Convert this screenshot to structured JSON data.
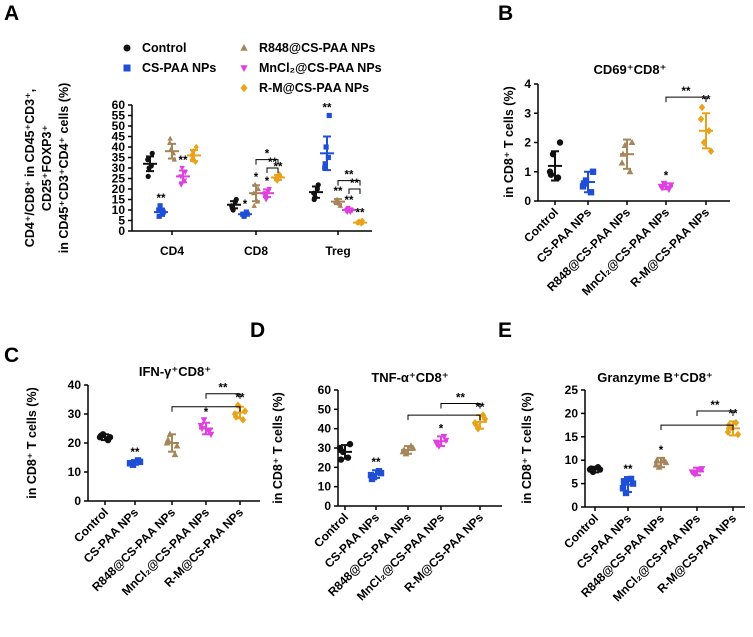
{
  "colors": {
    "Control": "#111111",
    "CS-PAA NPs": "#1f4fd6",
    "R848@CS-PAA NPs": "#a5855a",
    "MnCl2@CS-PAA NPs": "#e040e0",
    "R-M@CS-PAA NPs": "#e9a21c"
  },
  "chart_data": [
    {
      "panel": "A",
      "type": "scatter",
      "title": "",
      "ylabel_lines": [
        "CD4⁺/CD8⁺ in CD45⁺CD3⁺,",
        "CD25⁺FOXP3⁺",
        "in CD45⁺CD3⁺CD4⁺ cells (%)"
      ],
      "categories": [
        "CD4",
        "CD8",
        "Treg"
      ],
      "ylim": [
        0,
        60
      ],
      "yticks": [
        0,
        5,
        10,
        15,
        20,
        25,
        30,
        35,
        40,
        45,
        50,
        55,
        60
      ],
      "legend": [
        {
          "label": "Control",
          "symbol": "circle"
        },
        {
          "label": "CS-PAA NPs",
          "symbol": "square"
        },
        {
          "label": "R848@CS-PAA NPs",
          "symbol": "triangle"
        },
        {
          "label": "MnCl₂@CS-PAA NPs",
          "symbol": "triangle-down"
        },
        {
          "label": "R-M@CS-PAA NPs",
          "symbol": "diamond"
        }
      ],
      "series": [
        {
          "name": "Control",
          "symbol": "circle",
          "points": [
            [
              34,
              31,
              30,
              37,
              26
            ],
            [
              12,
              14,
              10,
              15,
              11
            ],
            [
              18,
              20,
              16,
              22,
              15
            ]
          ],
          "mean": [
            32,
            12.5,
            18.5
          ],
          "sd": [
            3.5,
            1.7,
            2.7
          ]
        },
        {
          "name": "CS-PAA NPs",
          "symbol": "square",
          "points": [
            [
              10,
              8,
              12,
              9,
              7
            ],
            [
              8,
              9,
              7,
              8,
              8
            ],
            [
              30,
              35,
              40,
              55,
              32
            ]
          ],
          "mean": [
            9,
            8,
            37
          ],
          "sd": [
            1.7,
            0.6,
            8
          ]
        },
        {
          "name": "R848@CS-PAA NPs",
          "symbol": "triangle",
          "points": [
            [
              42,
              37,
              39,
              34,
              44
            ],
            [
              18,
              14,
              22,
              20,
              12
            ],
            [
              14,
              13,
              15,
              12,
              14
            ]
          ],
          "mean": [
            38,
            18,
            14
          ],
          "sd": [
            3.5,
            3.8,
            1.2
          ]
        },
        {
          "name": "MnCl2@CS-PAA NPs",
          "symbol": "triangle-down",
          "points": [
            [
              26,
              24,
              30,
              28,
              22
            ],
            [
              17,
              19,
              15,
              20,
              18
            ],
            [
              10,
              9,
              11,
              10,
              9
            ]
          ],
          "mean": [
            26,
            18,
            10
          ],
          "sd": [
            2.8,
            1.8,
            0.8
          ]
        },
        {
          "name": "R-M@CS-PAA NPs",
          "symbol": "diamond",
          "points": [
            [
              36,
              33,
              38,
              40,
              34
            ],
            [
              25,
              27,
              24,
              26,
              25
            ],
            [
              4,
              3.5,
              4.5,
              5,
              4
            ]
          ],
          "mean": [
            36,
            25.5,
            4
          ],
          "sd": [
            2.6,
            1.2,
            0.5
          ]
        }
      ],
      "significance": [
        {
          "series": 1,
          "cat": 0,
          "label": "**"
        },
        {
          "series": 3,
          "cat": 0,
          "label": "**"
        },
        {
          "series": 1,
          "cat": 1,
          "label": "*"
        },
        {
          "series": 2,
          "cat": 1,
          "label": "*"
        },
        {
          "series": 3,
          "cat": 1,
          "label": "*"
        },
        {
          "series": 4,
          "cat": 1,
          "label": "**"
        },
        {
          "series": 1,
          "cat": 2,
          "label": "**"
        },
        {
          "series": 2,
          "cat": 2,
          "label": "**"
        },
        {
          "series": 3,
          "cat": 2,
          "label": "**"
        },
        {
          "series": 4,
          "cat": 2,
          "label": "**"
        }
      ],
      "brackets": [
        {
          "cat": 1,
          "from": 2,
          "to": 4,
          "y": 34,
          "label": "*"
        },
        {
          "cat": 1,
          "from": 3,
          "to": 4,
          "y": 30,
          "label": "**"
        },
        {
          "cat": 2,
          "from": 2,
          "to": 4,
          "y": 24,
          "label": "**"
        },
        {
          "cat": 2,
          "from": 3,
          "to": 4,
          "y": 20,
          "label": "**"
        }
      ]
    },
    {
      "panel": "B",
      "type": "scatter",
      "title": "CD69⁺CD8⁺",
      "ylabel": "in CD8⁺ T cells (%)",
      "ylim": [
        0,
        4
      ],
      "yticks": [
        0,
        1,
        2,
        3,
        4
      ],
      "categories": [
        "Control",
        "CS-PAA NPs",
        "R848@CS-PAA NPs",
        "MnCl₂@CS-PAA NPs",
        "R-M@CS-PAA NPs"
      ],
      "groups": [
        {
          "points": [
            1.0,
            0.8,
            1.6,
            2.0,
            0.9
          ],
          "mean": 1.2,
          "sd": 0.5
        },
        {
          "points": [
            0.5,
            0.3,
            0.7,
            1.0,
            0.6
          ],
          "mean": 0.65,
          "sd": 0.35
        },
        {
          "points": [
            1.3,
            1.0,
            1.9,
            2.0,
            1.6
          ],
          "mean": 1.6,
          "sd": 0.5
        },
        {
          "points": [
            0.5,
            0.4,
            0.6,
            0.55,
            0.45
          ],
          "mean": 0.5,
          "sd": 0.1
        },
        {
          "points": [
            2.8,
            2.4,
            2.0,
            1.7,
            3.2
          ],
          "mean": 2.4,
          "sd": 0.6
        }
      ],
      "significance": [
        {
          "group": 3,
          "label": "*"
        },
        {
          "group": 4,
          "label": "**"
        }
      ],
      "brackets": [
        {
          "from": 3,
          "to": 4,
          "y": 3.55,
          "label": "**"
        }
      ]
    },
    {
      "panel": "C",
      "type": "scatter",
      "title": "IFN-γ⁺CD8⁺",
      "ylabel": "in CD8⁺ T cells (%)",
      "ylim": [
        0,
        40
      ],
      "yticks": [
        0,
        10,
        20,
        30,
        40
      ],
      "categories": [
        "Control",
        "CS-PAA NPs",
        "R848@CS-PAA NPs",
        "MnCl₂@CS-PAA NPs",
        "R-M@CS-PAA NPs"
      ],
      "groups": [
        {
          "points": [
            22,
            21,
            23,
            22,
            22.5
          ],
          "mean": 22,
          "sd": 1
        },
        {
          "points": [
            13,
            14,
            12.5,
            13.5,
            13
          ],
          "mean": 13.3,
          "sd": 0.8
        },
        {
          "points": [
            20,
            16,
            23,
            19,
            21
          ],
          "mean": 20,
          "sd": 3
        },
        {
          "points": [
            26,
            24,
            28,
            23,
            25
          ],
          "mean": 25,
          "sd": 2
        },
        {
          "points": [
            30,
            28,
            33,
            31,
            29
          ],
          "mean": 30.5,
          "sd": 2
        }
      ],
      "significance": [
        {
          "group": 1,
          "label": "**"
        },
        {
          "group": 3,
          "label": "*"
        },
        {
          "group": 4,
          "label": "**"
        }
      ],
      "brackets": [
        {
          "from": 2,
          "to": 4,
          "y": 32.5,
          "label": ""
        },
        {
          "from": 3,
          "to": 4,
          "y": 37,
          "label": "**"
        }
      ]
    },
    {
      "panel": "D",
      "type": "scatter",
      "title": "TNF-α⁺CD8⁺",
      "ylabel": "in CD8⁺ T cells (%)",
      "ylim": [
        0,
        60
      ],
      "yticks": [
        0,
        10,
        20,
        30,
        40,
        50,
        60
      ],
      "categories": [
        "Control",
        "CS-PAA NPs",
        "R848@CS-PAA NPs",
        "MnCl₂@CS-PAA NPs",
        "R-M@CS-PAA NPs"
      ],
      "groups": [
        {
          "points": [
            30,
            25,
            28,
            32,
            24
          ],
          "mean": 28,
          "sd": 3.5
        },
        {
          "points": [
            16,
            18,
            15,
            17,
            14
          ],
          "mean": 16.5,
          "sd": 2
        },
        {
          "points": [
            28,
            31,
            27,
            30,
            29
          ],
          "mean": 29,
          "sd": 2
        },
        {
          "points": [
            33,
            36,
            31,
            34,
            32
          ],
          "mean": 33.5,
          "sd": 2.5
        },
        {
          "points": [
            43,
            47,
            40,
            45,
            42
          ],
          "mean": 43.5,
          "sd": 3.5
        }
      ],
      "significance": [
        {
          "group": 1,
          "label": "**"
        },
        {
          "group": 3,
          "label": "*"
        },
        {
          "group": 4,
          "label": "**"
        }
      ],
      "brackets": [
        {
          "from": 2,
          "to": 4,
          "y": 47,
          "label": ""
        },
        {
          "from": 3,
          "to": 4,
          "y": 53,
          "label": "**"
        }
      ]
    },
    {
      "panel": "E",
      "type": "scatter",
      "title": "Granzyme B⁺CD8⁺",
      "ylabel": "in CD8⁺ T cells (%)",
      "ylim": [
        0,
        25
      ],
      "yticks": [
        0,
        5,
        10,
        15,
        20,
        25
      ],
      "categories": [
        "Control",
        "CS-PAA NPs",
        "R848@CS-PAA NPs",
        "MnCl₂@CS-PAA NPs",
        "R-M@CS-PAA NPs"
      ],
      "groups": [
        {
          "points": [
            8,
            8.5,
            7.5,
            8,
            8.2
          ],
          "mean": 8,
          "sd": 0.6
        },
        {
          "points": [
            4,
            6,
            3,
            5,
            5.5
          ],
          "mean": 4.8,
          "sd": 1.6
        },
        {
          "points": [
            9,
            10,
            8.5,
            9.5,
            10
          ],
          "mean": 9.5,
          "sd": 1
        },
        {
          "points": [
            7.5,
            8,
            7,
            8.2,
            7.4
          ],
          "mean": 7.6,
          "sd": 0.8
        },
        {
          "points": [
            16,
            18,
            17,
            15.5,
            17.5
          ],
          "mean": 16.8,
          "sd": 1.5
        }
      ],
      "significance": [
        {
          "group": 1,
          "label": "**"
        },
        {
          "group": 2,
          "label": "*"
        },
        {
          "group": 4,
          "label": "**"
        }
      ],
      "brackets": [
        {
          "from": 2,
          "to": 4,
          "y": 17.5,
          "label": ""
        },
        {
          "from": 3,
          "to": 4,
          "y": 20.5,
          "label": "**"
        }
      ]
    }
  ]
}
